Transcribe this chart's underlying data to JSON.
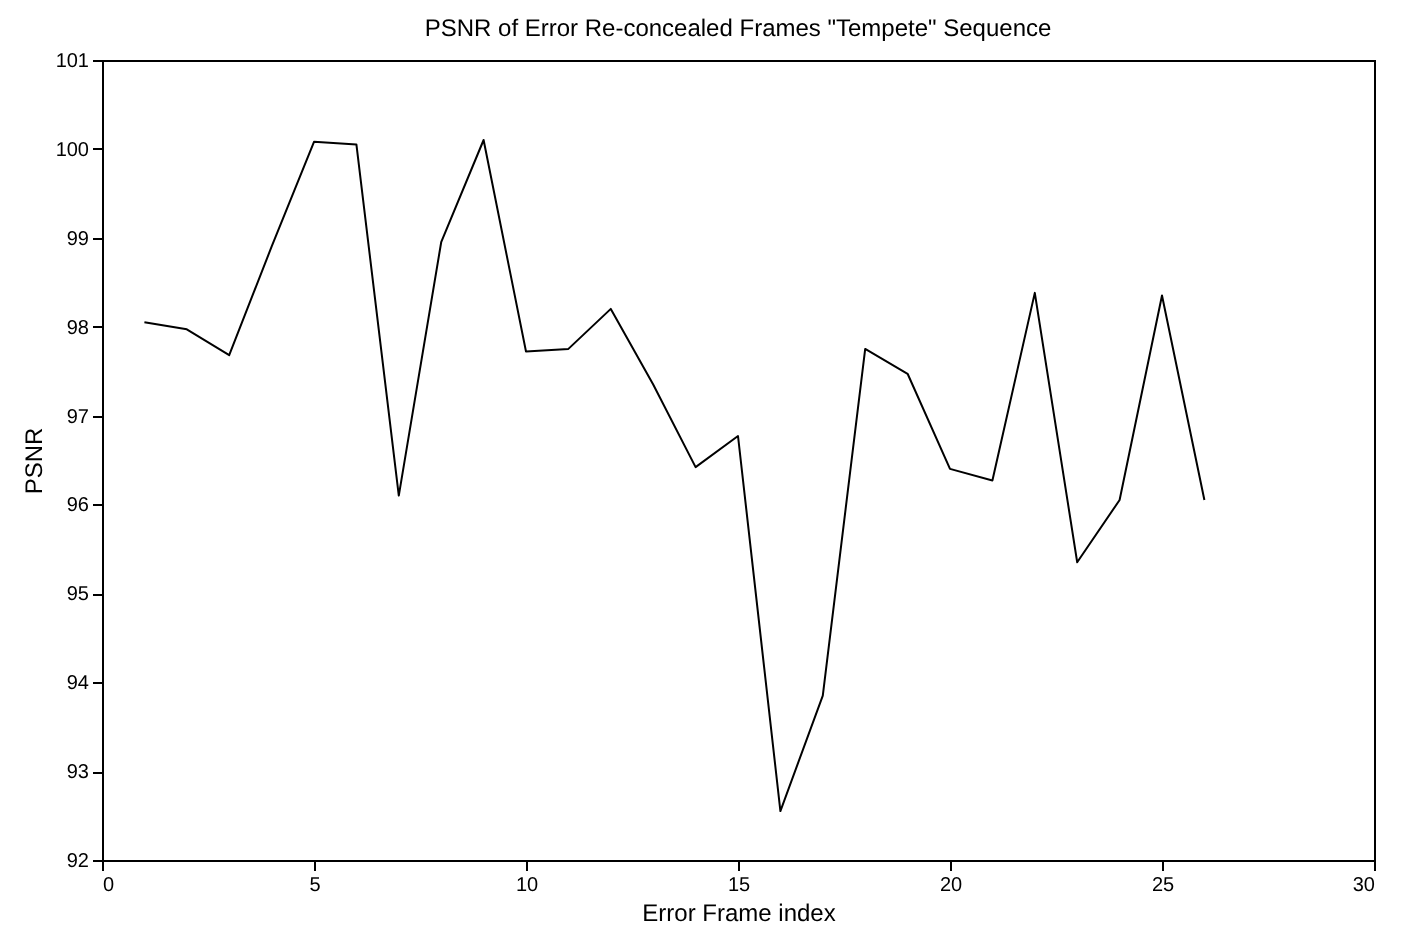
{
  "chart_data": {
    "type": "line",
    "title": "PSNR of Error Re-concealed Frames \"Tempete\" Sequence",
    "xlabel": "Error Frame index",
    "ylabel": "PSNR",
    "x": [
      1,
      2,
      3,
      4,
      5,
      6,
      7,
      8,
      9,
      10,
      11,
      12,
      13,
      14,
      15,
      16,
      17,
      18,
      19,
      20,
      21,
      22,
      23,
      24,
      25,
      26
    ],
    "series": [
      {
        "color": "#000000",
        "values": [
          98.05,
          97.97,
          97.68,
          98.9,
          100.08,
          100.05,
          96.1,
          98.95,
          100.1,
          97.72,
          97.75,
          98.2,
          97.35,
          96.42,
          96.77,
          92.55,
          93.85,
          97.75,
          97.47,
          96.4,
          96.27,
          98.38,
          95.35,
          96.05,
          98.35,
          96.05
        ]
      }
    ],
    "xlim": [
      0,
      30
    ],
    "xticks": [
      0,
      5,
      10,
      15,
      20,
      25,
      30
    ],
    "ylim": [
      92,
      101
    ],
    "yticks": [
      92,
      93,
      94,
      95,
      96,
      97,
      98,
      99,
      100,
      101
    ],
    "grid": false,
    "marker": "none",
    "line_style": "solid"
  }
}
